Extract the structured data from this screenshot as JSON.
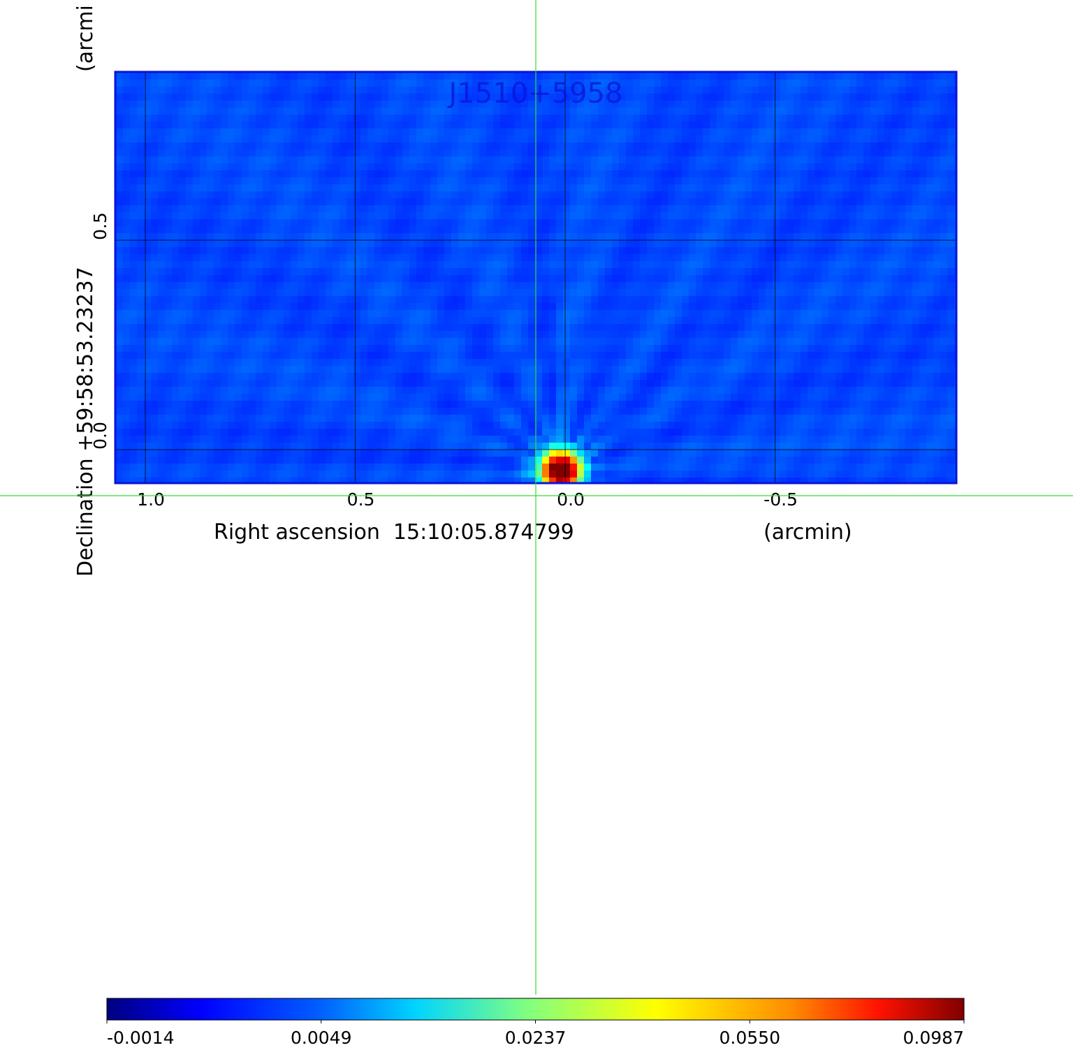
{
  "chart_data": {
    "type": "heatmap",
    "title": "J1510+5958",
    "xlabel": "Right ascension  15:10:05.874799",
    "xunit": "(arcmin)",
    "ylabel": "Declination +59:58:53.23237",
    "yunit": "(arcmi",
    "xlim": [
      1.07,
      -0.93
    ],
    "ylim": [
      -0.08,
      0.9
    ],
    "x_ticks": [
      1.0,
      0.5,
      0.0,
      -0.5
    ],
    "x_tick_labels": [
      "1.0",
      "0.5",
      "0.0",
      "-0.5"
    ],
    "y_ticks": [
      0.0,
      0.5
    ],
    "y_tick_labels": [
      "0.0",
      "0.5"
    ],
    "grid": true,
    "colormap": "jet",
    "crosshair": {
      "x": 0.07,
      "y": -0.11,
      "color": "#33dd33"
    },
    "frame_color": "#0a14d6",
    "peak": {
      "x": 0.01,
      "y": -0.05,
      "value": 0.0987
    },
    "colorbar": {
      "ticks": [
        -0.0014,
        0.0049,
        0.0237,
        0.055,
        0.0987
      ],
      "tick_labels": [
        "-0.0014",
        "0.0049",
        "0.0237",
        "0.0550",
        "0.0987"
      ]
    }
  }
}
